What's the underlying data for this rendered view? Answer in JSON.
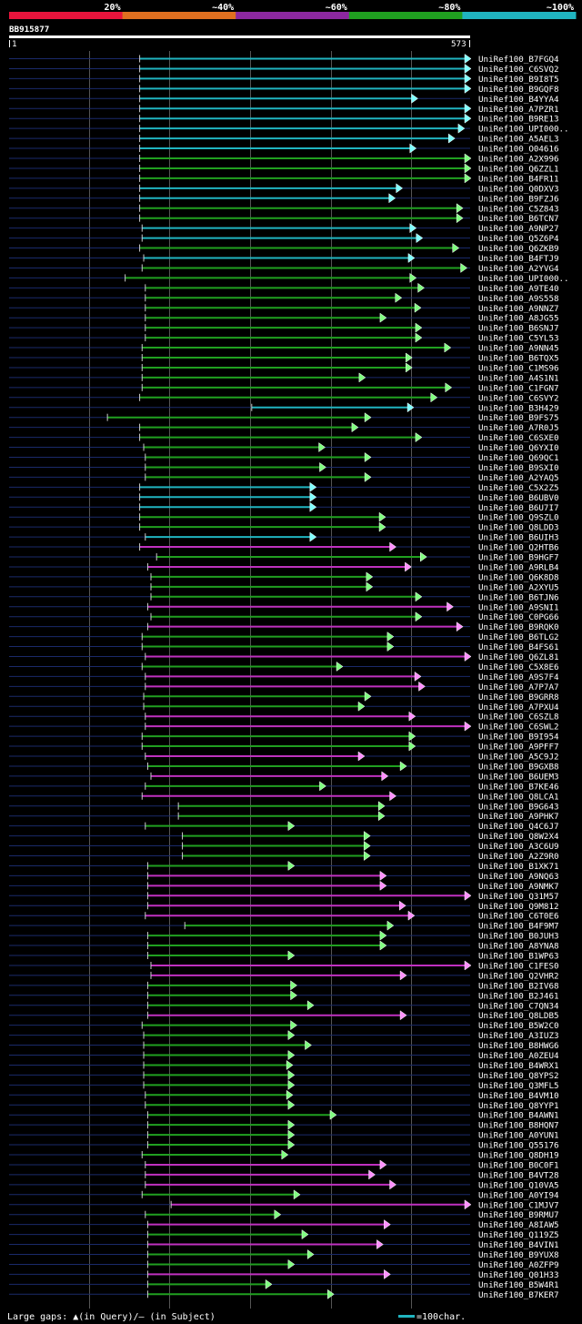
{
  "chart_data": {
    "type": "alignment-overview",
    "query_id": "BB915877",
    "ruler": {
      "start": "1",
      "end": "573"
    },
    "x_range": [
      1,
      573
    ],
    "identity_scale": [
      {
        "label": "20%",
        "color": "#e8143c"
      },
      {
        "label": "~40%",
        "color": "#e07020"
      },
      {
        "label": "~60%",
        "color": "#8c28a0"
      },
      {
        "label": "~80%",
        "color": "#20a020"
      },
      {
        "label": "~100%",
        "color": "#20b4c0"
      }
    ],
    "hits": [
      {
        "name": "UniRef100_B7FGQ4",
        "start": 163,
        "end": 573,
        "id": "100"
      },
      {
        "name": "UniRef100_C6SVQ2",
        "start": 163,
        "end": 573,
        "id": "100"
      },
      {
        "name": "UniRef100_B9I8T5",
        "start": 163,
        "end": 573,
        "id": "100"
      },
      {
        "name": "UniRef100_B9GQF8",
        "start": 163,
        "end": 573,
        "id": "100"
      },
      {
        "name": "UniRef100_B4YYA4",
        "start": 163,
        "end": 507,
        "id": "100"
      },
      {
        "name": "UniRef100_A7PZR1",
        "start": 163,
        "end": 573,
        "id": "100"
      },
      {
        "name": "UniRef100_B9RE13",
        "start": 163,
        "end": 573,
        "id": "100"
      },
      {
        "name": "UniRef100_UPI000..",
        "start": 163,
        "end": 565,
        "id": "100"
      },
      {
        "name": "UniRef100_A5AEL3",
        "start": 163,
        "end": 553,
        "id": "100"
      },
      {
        "name": "UniRef100_O04616",
        "start": 163,
        "end": 505,
        "id": "100"
      },
      {
        "name": "UniRef100_A2X996",
        "start": 163,
        "end": 573,
        "id": "80"
      },
      {
        "name": "UniRef100_Q6ZZL1",
        "start": 163,
        "end": 573,
        "id": "80"
      },
      {
        "name": "UniRef100_B4FR11",
        "start": 163,
        "end": 573,
        "id": "80"
      },
      {
        "name": "UniRef100_Q0DXV3",
        "start": 163,
        "end": 488,
        "id": "100"
      },
      {
        "name": "UniRef100_B9FZJ6",
        "start": 163,
        "end": 479,
        "id": "100"
      },
      {
        "name": "UniRef100_C5Z843",
        "start": 163,
        "end": 563,
        "id": "80"
      },
      {
        "name": "UniRef100_B6TCN7",
        "start": 163,
        "end": 563,
        "id": "80"
      },
      {
        "name": "UniRef100_A9NP27",
        "start": 166,
        "end": 505,
        "id": "100"
      },
      {
        "name": "UniRef100_Q5Z6P4",
        "start": 166,
        "end": 513,
        "id": "100"
      },
      {
        "name": "UniRef100_Q6ZKB9",
        "start": 163,
        "end": 558,
        "id": "80"
      },
      {
        "name": "UniRef100_B4FTJ9",
        "start": 168,
        "end": 503,
        "id": "100"
      },
      {
        "name": "UniRef100_A2YVG4",
        "start": 166,
        "end": 568,
        "id": "80"
      },
      {
        "name": "UniRef100_UPI000..",
        "start": 145,
        "end": 505,
        "id": "80"
      },
      {
        "name": "UniRef100_A9TE40",
        "start": 170,
        "end": 515,
        "id": "80"
      },
      {
        "name": "UniRef100_A9S558",
        "start": 170,
        "end": 487,
        "id": "80"
      },
      {
        "name": "UniRef100_A9NNZ7",
        "start": 170,
        "end": 511,
        "id": "80"
      },
      {
        "name": "UniRef100_A8JG55",
        "start": 170,
        "end": 468,
        "id": "80"
      },
      {
        "name": "UniRef100_B6SNJ7",
        "start": 170,
        "end": 512,
        "id": "80"
      },
      {
        "name": "UniRef100_C5YL53",
        "start": 170,
        "end": 512,
        "id": "80"
      },
      {
        "name": "UniRef100_A9NN45",
        "start": 166,
        "end": 548,
        "id": "80"
      },
      {
        "name": "UniRef100_B6TQX5",
        "start": 166,
        "end": 500,
        "id": "80"
      },
      {
        "name": "UniRef100_C1MS96",
        "start": 166,
        "end": 500,
        "id": "80"
      },
      {
        "name": "UniRef100_A4S1N1",
        "start": 166,
        "end": 442,
        "id": "80"
      },
      {
        "name": "UniRef100_C1FGN7",
        "start": 166,
        "end": 549,
        "id": "80"
      },
      {
        "name": "UniRef100_C6SVY2",
        "start": 163,
        "end": 531,
        "id": "80"
      },
      {
        "name": "UniRef100_B3H429",
        "start": 302,
        "end": 502,
        "id": "100"
      },
      {
        "name": "UniRef100_B9FS75",
        "start": 123,
        "end": 449,
        "id": "80"
      },
      {
        "name": "UniRef100_A7R0J5",
        "start": 163,
        "end": 433,
        "id": "80"
      },
      {
        "name": "UniRef100_C6SXE0",
        "start": 163,
        "end": 512,
        "id": "80"
      },
      {
        "name": "UniRef100_Q6YXI0",
        "start": 168,
        "end": 392,
        "id": "80"
      },
      {
        "name": "UniRef100_Q69QC1",
        "start": 170,
        "end": 449,
        "id": "80"
      },
      {
        "name": "UniRef100_B9SXI0",
        "start": 170,
        "end": 393,
        "id": "80"
      },
      {
        "name": "UniRef100_A2YAQ5",
        "start": 170,
        "end": 449,
        "id": "80"
      },
      {
        "name": "UniRef100_C5X2Z5",
        "start": 163,
        "end": 381,
        "id": "100"
      },
      {
        "name": "UniRef100_B6UBV0",
        "start": 163,
        "end": 381,
        "id": "100"
      },
      {
        "name": "UniRef100_B6U7I7",
        "start": 163,
        "end": 381,
        "id": "100"
      },
      {
        "name": "UniRef100_Q9SZL0",
        "start": 163,
        "end": 467,
        "id": "80"
      },
      {
        "name": "UniRef100_Q8LDD3",
        "start": 163,
        "end": 467,
        "id": "80"
      },
      {
        "name": "UniRef100_B6UIH3",
        "start": 170,
        "end": 381,
        "id": "100"
      },
      {
        "name": "UniRef100_Q2HTB6",
        "start": 163,
        "end": 480,
        "id": "60"
      },
      {
        "name": "UniRef100_B9HGF7",
        "start": 184,
        "end": 518,
        "id": "80"
      },
      {
        "name": "UniRef100_A9RLB4",
        "start": 173,
        "end": 499,
        "id": "60"
      },
      {
        "name": "UniRef100_Q6K8D8",
        "start": 177,
        "end": 451,
        "id": "80"
      },
      {
        "name": "UniRef100_A2XYU5",
        "start": 177,
        "end": 451,
        "id": "80"
      },
      {
        "name": "UniRef100_B6TJN6",
        "start": 177,
        "end": 512,
        "id": "80"
      },
      {
        "name": "UniRef100_A9SNI1",
        "start": 173,
        "end": 551,
        "id": "60"
      },
      {
        "name": "UniRef100_C0PG66",
        "start": 177,
        "end": 512,
        "id": "80"
      },
      {
        "name": "UniRef100_B9RQK0",
        "start": 173,
        "end": 563,
        "id": "60"
      },
      {
        "name": "UniRef100_B6TLG2",
        "start": 166,
        "end": 477,
        "id": "80"
      },
      {
        "name": "UniRef100_B4FS61",
        "start": 166,
        "end": 477,
        "id": "80"
      },
      {
        "name": "UniRef100_Q6ZL81",
        "start": 170,
        "end": 573,
        "id": "60"
      },
      {
        "name": "UniRef100_C5X8E6",
        "start": 166,
        "end": 414,
        "id": "80"
      },
      {
        "name": "UniRef100_A9S7F4",
        "start": 170,
        "end": 511,
        "id": "60"
      },
      {
        "name": "UniRef100_A7P7A7",
        "start": 170,
        "end": 516,
        "id": "60"
      },
      {
        "name": "UniRef100_B9GRR8",
        "start": 168,
        "end": 449,
        "id": "80"
      },
      {
        "name": "UniRef100_A7PXU4",
        "start": 168,
        "end": 441,
        "id": "80"
      },
      {
        "name": "UniRef100_C6SZL8",
        "start": 170,
        "end": 504,
        "id": "60"
      },
      {
        "name": "UniRef100_C6SWL2",
        "start": 170,
        "end": 573,
        "id": "60"
      },
      {
        "name": "UniRef100_B9I954",
        "start": 166,
        "end": 504,
        "id": "80"
      },
      {
        "name": "UniRef100_A9PFF7",
        "start": 166,
        "end": 504,
        "id": "80"
      },
      {
        "name": "UniRef100_A5C9J2",
        "start": 170,
        "end": 441,
        "id": "60"
      },
      {
        "name": "UniRef100_B9GXB8",
        "start": 173,
        "end": 493,
        "id": "80"
      },
      {
        "name": "UniRef100_B6UEM3",
        "start": 177,
        "end": 470,
        "id": "60"
      },
      {
        "name": "UniRef100_B7KE46",
        "start": 170,
        "end": 393,
        "id": "80"
      },
      {
        "name": "UniRef100_Q8LCA1",
        "start": 166,
        "end": 480,
        "id": "60"
      },
      {
        "name": "UniRef100_B9G643",
        "start": 211,
        "end": 466,
        "id": "80"
      },
      {
        "name": "UniRef100_A9PHK7",
        "start": 211,
        "end": 466,
        "id": "80"
      },
      {
        "name": "UniRef100_Q4C6J7",
        "start": 170,
        "end": 354,
        "id": "80"
      },
      {
        "name": "UniRef100_Q8W2X4",
        "start": 216,
        "end": 448,
        "id": "80"
      },
      {
        "name": "UniRef100_A3C6U9",
        "start": 216,
        "end": 448,
        "id": "80"
      },
      {
        "name": "UniRef100_A2Z9R0",
        "start": 216,
        "end": 448,
        "id": "80"
      },
      {
        "name": "UniRef100_B1XK71",
        "start": 173,
        "end": 354,
        "id": "80"
      },
      {
        "name": "UniRef100_A9NQ63",
        "start": 173,
        "end": 468,
        "id": "60"
      },
      {
        "name": "UniRef100_A9NMK7",
        "start": 173,
        "end": 468,
        "id": "60"
      },
      {
        "name": "UniRef100_Q31M57",
        "start": 173,
        "end": 573,
        "id": "60"
      },
      {
        "name": "UniRef100_Q9M812",
        "start": 173,
        "end": 492,
        "id": "60"
      },
      {
        "name": "UniRef100_C6T0E6",
        "start": 170,
        "end": 503,
        "id": "60"
      },
      {
        "name": "UniRef100_B4F9M7",
        "start": 219,
        "end": 477,
        "id": "80"
      },
      {
        "name": "UniRef100_B0JUH3",
        "start": 173,
        "end": 468,
        "id": "80"
      },
      {
        "name": "UniRef100_A8YNA8",
        "start": 173,
        "end": 468,
        "id": "80"
      },
      {
        "name": "UniRef100_B1WP63",
        "start": 173,
        "end": 354,
        "id": "80"
      },
      {
        "name": "UniRef100_C1FES0",
        "start": 177,
        "end": 573,
        "id": "60"
      },
      {
        "name": "UniRef100_Q2VHR2",
        "start": 177,
        "end": 493,
        "id": "60"
      },
      {
        "name": "UniRef100_B2IV68",
        "start": 173,
        "end": 357,
        "id": "80"
      },
      {
        "name": "UniRef100_B2J461",
        "start": 173,
        "end": 357,
        "id": "80"
      },
      {
        "name": "UniRef100_C7QN34",
        "start": 173,
        "end": 378,
        "id": "80"
      },
      {
        "name": "UniRef100_Q8LDB5",
        "start": 173,
        "end": 493,
        "id": "60"
      },
      {
        "name": "UniRef100_B5W2C0",
        "start": 166,
        "end": 357,
        "id": "80"
      },
      {
        "name": "UniRef100_A3IUZ3",
        "start": 168,
        "end": 354,
        "id": "80"
      },
      {
        "name": "UniRef100_B8HWG6",
        "start": 168,
        "end": 375,
        "id": "80"
      },
      {
        "name": "UniRef100_A0ZEU4",
        "start": 168,
        "end": 354,
        "id": "80"
      },
      {
        "name": "UniRef100_B4WRX1",
        "start": 168,
        "end": 352,
        "id": "80"
      },
      {
        "name": "UniRef100_Q8YPS2",
        "start": 168,
        "end": 354,
        "id": "80"
      },
      {
        "name": "UniRef100_Q3MFL5",
        "start": 168,
        "end": 354,
        "id": "80"
      },
      {
        "name": "UniRef100_B4VM10",
        "start": 170,
        "end": 352,
        "id": "80"
      },
      {
        "name": "UniRef100_Q8YYP1",
        "start": 170,
        "end": 354,
        "id": "80"
      },
      {
        "name": "UniRef100_B4AWN1",
        "start": 173,
        "end": 406,
        "id": "80"
      },
      {
        "name": "UniRef100_B8HQN7",
        "start": 173,
        "end": 354,
        "id": "80"
      },
      {
        "name": "UniRef100_A0YUN1",
        "start": 173,
        "end": 354,
        "id": "80"
      },
      {
        "name": "UniRef100_Q55176",
        "start": 173,
        "end": 354,
        "id": "80"
      },
      {
        "name": "UniRef100_Q8DH19",
        "start": 166,
        "end": 346,
        "id": "80"
      },
      {
        "name": "UniRef100_B0C0F1",
        "start": 170,
        "end": 468,
        "id": "60"
      },
      {
        "name": "UniRef100_B4VT28",
        "start": 170,
        "end": 454,
        "id": "60"
      },
      {
        "name": "UniRef100_Q10VA5",
        "start": 170,
        "end": 480,
        "id": "60"
      },
      {
        "name": "UniRef100_A0YI94",
        "start": 166,
        "end": 361,
        "id": "80"
      },
      {
        "name": "UniRef100_C1MJV7",
        "start": 202,
        "end": 573,
        "id": "60"
      },
      {
        "name": "UniRef100_B9RMU7",
        "start": 170,
        "end": 337,
        "id": "80"
      },
      {
        "name": "UniRef100_A8IAW5",
        "start": 173,
        "end": 473,
        "id": "60"
      },
      {
        "name": "UniRef100_Q119Z5",
        "start": 173,
        "end": 371,
        "id": "80"
      },
      {
        "name": "UniRef100_B4VIN1",
        "start": 173,
        "end": 464,
        "id": "60"
      },
      {
        "name": "UniRef100_B9YUX8",
        "start": 173,
        "end": 378,
        "id": "80"
      },
      {
        "name": "UniRef100_A0ZFP9",
        "start": 173,
        "end": 354,
        "id": "80"
      },
      {
        "name": "UniRef100_Q01H33",
        "start": 173,
        "end": 473,
        "id": "60"
      },
      {
        "name": "UniRef100_B5W4R1",
        "start": 173,
        "end": 326,
        "id": "80"
      },
      {
        "name": "UniRef100_B7KER7",
        "start": 173,
        "end": 403,
        "id": "80"
      }
    ],
    "legend": {
      "gaps_text": "Large gaps: ▲(in Query)/– (in Subject)",
      "scale_text": "=100char."
    }
  }
}
